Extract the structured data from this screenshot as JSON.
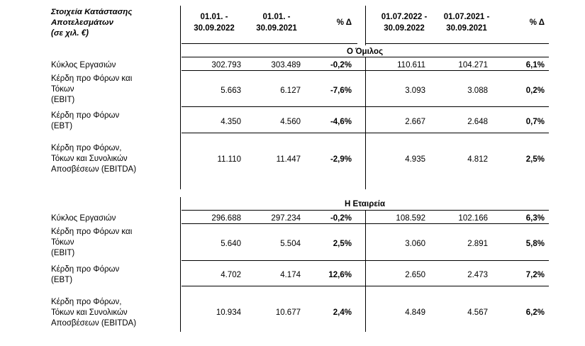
{
  "header": {
    "title_lines": [
      "Στοιχεία Κατάστασης",
      "Αποτελεσμάτων",
      "(σε χιλ. €)"
    ],
    "columns": [
      {
        "line1": "01.01. -",
        "line2": "30.09.2022"
      },
      {
        "line1": "01.01. -",
        "line2": "30.09.2021"
      },
      {
        "line1": "% Δ",
        "line2": ""
      },
      {
        "line1": "01.07.2022 -",
        "line2": "30.09.2022"
      },
      {
        "line1": "01.07.2021 -",
        "line2": "30.09.2021"
      },
      {
        "line1": "% Δ",
        "line2": ""
      }
    ]
  },
  "sections": [
    {
      "title": "Ο Όμιλος",
      "rows": [
        {
          "label": [
            "Κύκλος Εργασιών"
          ],
          "values": [
            "302.793",
            "303.489",
            "-0,2%",
            "110.611",
            "104.271",
            "6,1%"
          ]
        },
        {
          "label": [
            "Κέρδη προ Φόρων και",
            "Τόκων",
            "(EBIT)"
          ],
          "values": [
            "5.663",
            "6.127",
            "-7,6%",
            "3.093",
            "3.088",
            "0,2%"
          ]
        },
        {
          "label": [
            "Κέρδη προ Φόρων",
            "(EBT)"
          ],
          "values": [
            "4.350",
            "4.560",
            "-4,6%",
            "2.667",
            "2.648",
            "0,7%"
          ]
        },
        {
          "label": [
            "Κέρδη προ Φόρων,",
            "Τόκων και Συνολικών",
            "Αποσβέσεων  (EBITDA)"
          ],
          "values": [
            "11.110",
            "11.447",
            "-2,9%",
            "4.935",
            "4.812",
            "2,5%"
          ]
        }
      ]
    },
    {
      "title": "Η Εταιρεία",
      "rows": [
        {
          "label": [
            "Κύκλος Εργασιών"
          ],
          "values": [
            "296.688",
            "297.234",
            "-0,2%",
            "108.592",
            "102.166",
            "6,3%"
          ]
        },
        {
          "label": [
            "Κέρδη προ Φόρων και",
            "Τόκων",
            "(EBIT)"
          ],
          "values": [
            "5.640",
            "5.504",
            "2,5%",
            "3.060",
            "2.891",
            "5,8%"
          ]
        },
        {
          "label": [
            "Κέρδη προ Φόρων",
            "(EBT)"
          ],
          "values": [
            "4.702",
            "4.174",
            "12,6%",
            "2.650",
            "2.473",
            "7,2%"
          ]
        },
        {
          "label": [
            "Κέρδη προ Φόρων,",
            "Τόκων και Συνολικών",
            "Αποσβέσεων  (EBITDA)"
          ],
          "values": [
            "10.934",
            "10.677",
            "2,4%",
            "4.849",
            "4.567",
            "6,2%"
          ]
        }
      ]
    }
  ]
}
